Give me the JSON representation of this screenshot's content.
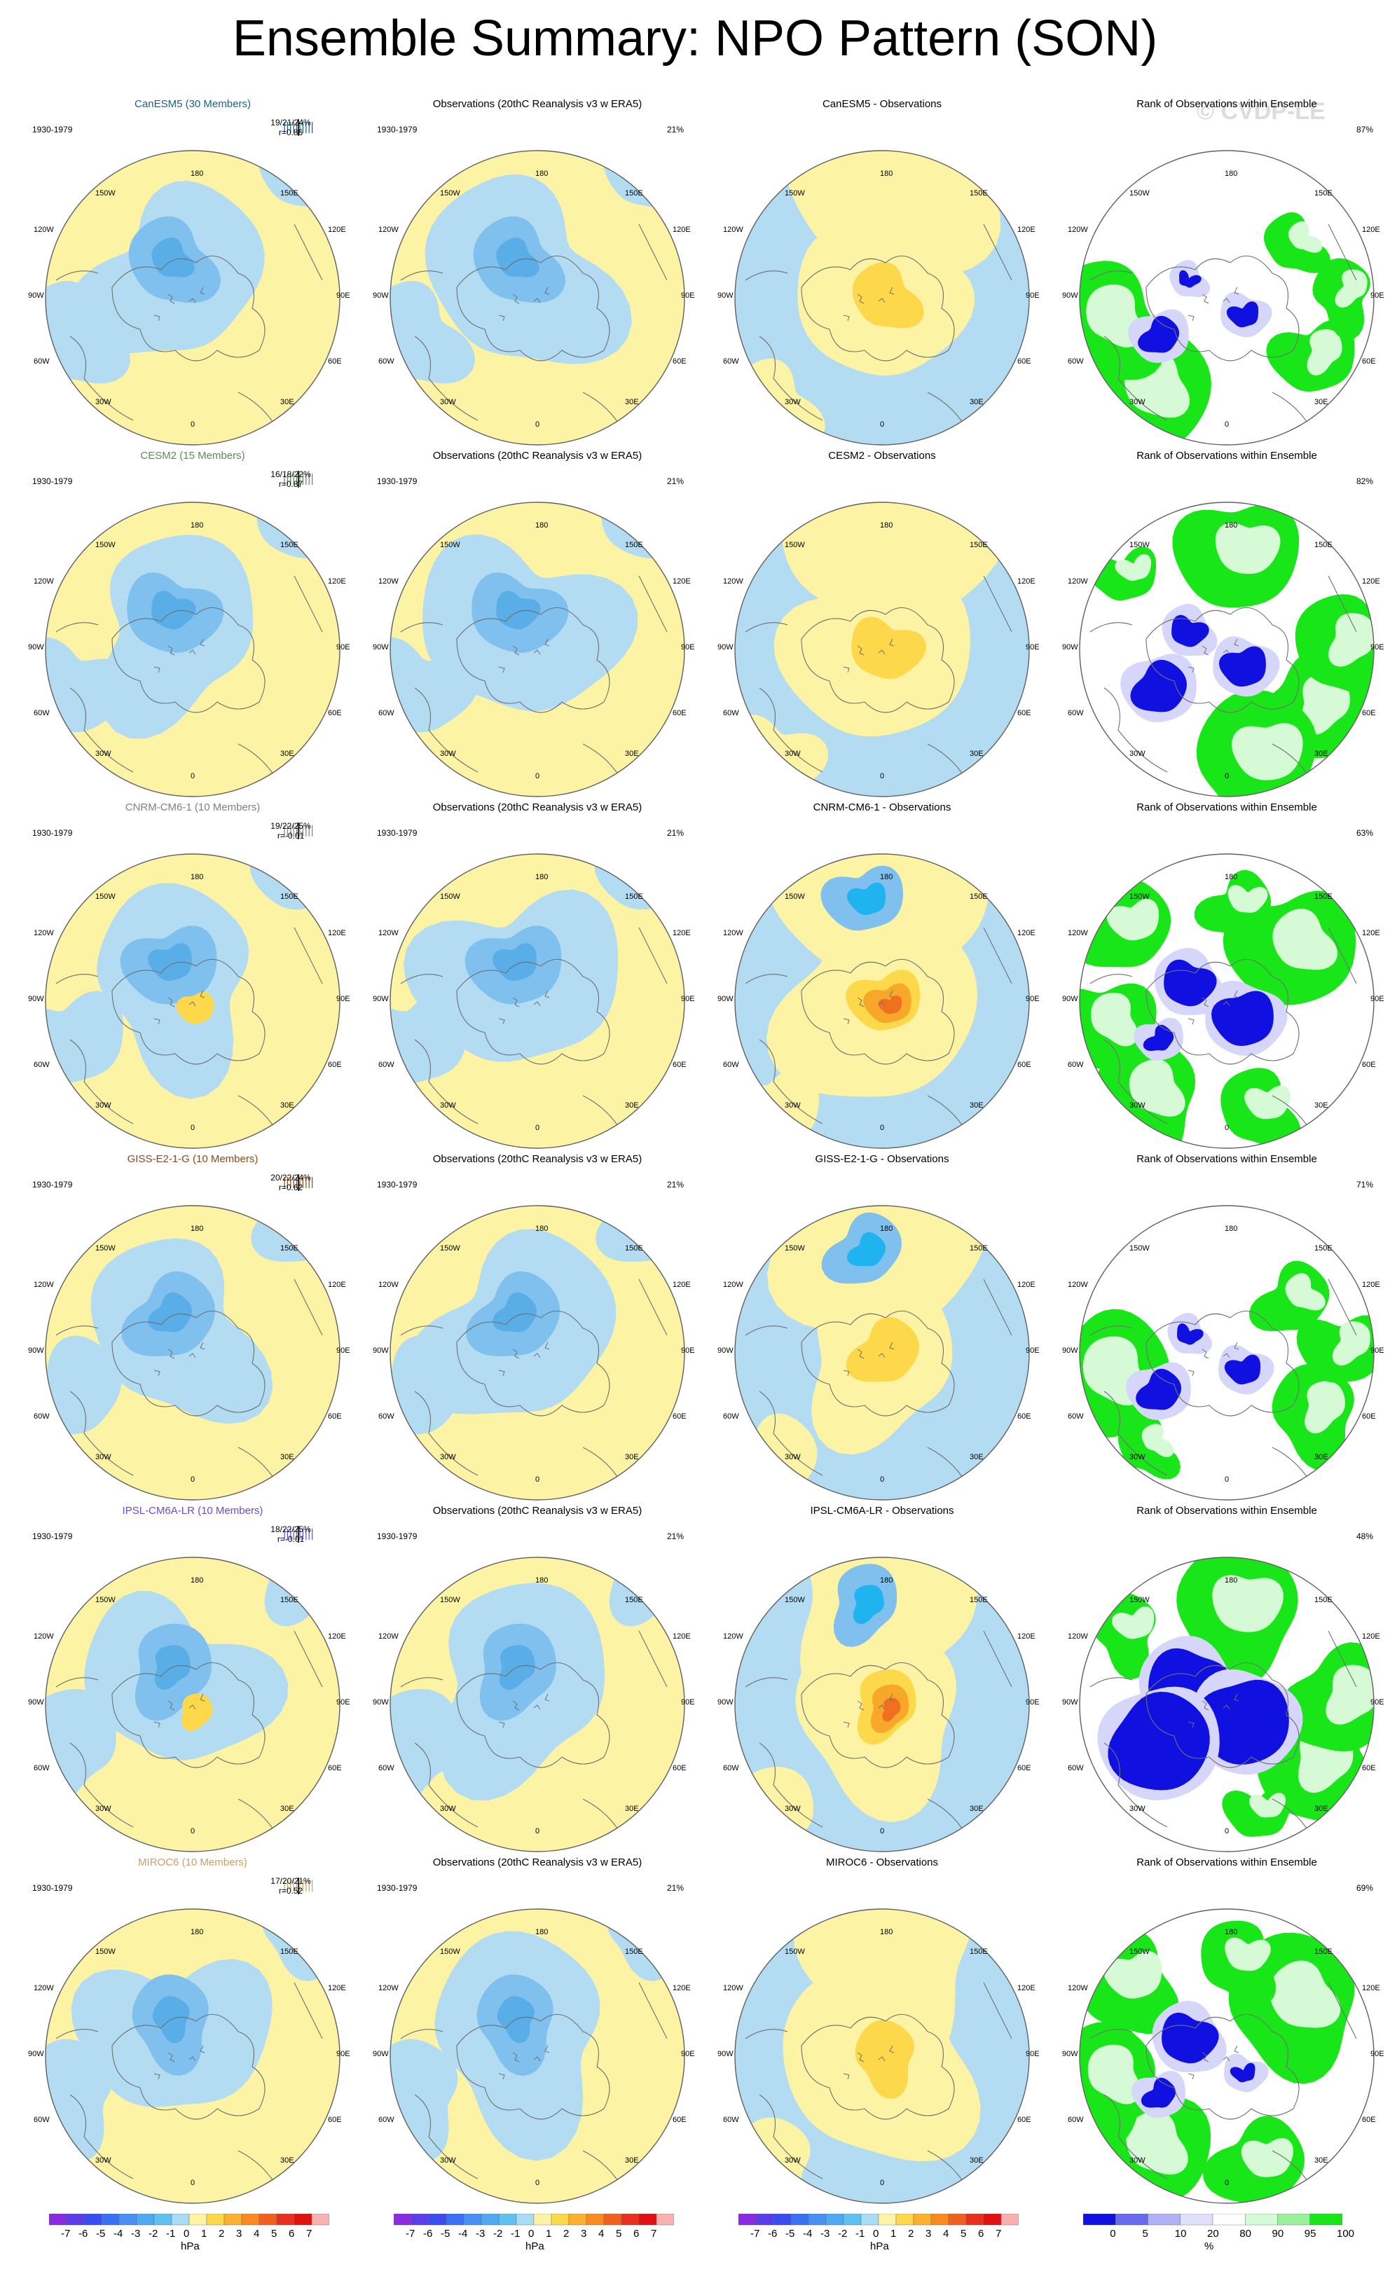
{
  "title": "Ensemble Summary: NPO Pattern (SON)",
  "watermark": "© CVDP-LE",
  "period": "1930-1979",
  "lon_labels": {
    "top": "180",
    "tl": "150W",
    "tr": "150E",
    "ul": "120W",
    "ur": "120E",
    "l": "90W",
    "r": "90E",
    "ll": "60W",
    "lr": "60E",
    "bl": "30W",
    "br": "30E",
    "bottom": "0"
  },
  "colors": {
    "light_blue": "#b3dcf2",
    "mid_blue": "#7fc0ee",
    "blue": "#5aaee8",
    "cyan": "#1fb4f0",
    "light_yellow": "#fcf3a4",
    "yellow_orange": "#fcd84a",
    "orange": "#f7a82a",
    "deep_orange": "#f07020",
    "rank_green": "#19e619",
    "rank_pale_green": "#d6fad6",
    "rank_blue": "#1010e0",
    "rank_lavender": "#d6d6fa"
  },
  "rows": [
    {
      "model": {
        "title": "CanESM5 (30 Members)",
        "title_color": "#1a5e8c",
        "stats": "19/21/24%",
        "r": "r=0.86",
        "tick_color": "#1a5e8c"
      },
      "obs": {
        "title": "Observations (20thC Reanalysis v3 w ERA5)",
        "pct": "21%"
      },
      "diff": {
        "title": "CanESM5 - Observations"
      },
      "rank": {
        "title": "Rank of Observations within Ensemble",
        "pct": "87%"
      }
    },
    {
      "model": {
        "title": "CESM2 (15 Members)",
        "title_color": "#5a8c5a",
        "stats": "16/18/22%",
        "r": "r=0.87",
        "tick_color": "#5a8c5a"
      },
      "obs": {
        "title": "Observations (20thC Reanalysis v3 w ERA5)",
        "pct": "21%"
      },
      "diff": {
        "title": "CESM2 - Observations"
      },
      "rank": {
        "title": "Rank of Observations within Ensemble",
        "pct": "82%"
      }
    },
    {
      "model": {
        "title": "CNRM-CM6-1 (10 Members)",
        "title_color": "#808080",
        "stats": "19/22/25%",
        "r": "r=-0.01",
        "tick_color": "#808080"
      },
      "obs": {
        "title": "Observations (20thC Reanalysis v3 w ERA5)",
        "pct": "21%"
      },
      "diff": {
        "title": "CNRM-CM6-1 - Observations"
      },
      "rank": {
        "title": "Rank of Observations within Ensemble",
        "pct": "63%"
      }
    },
    {
      "model": {
        "title": "GISS-E2-1-G (10 Members)",
        "title_color": "#8c4a1a",
        "stats": "20/22/24%",
        "r": "r=0.62",
        "tick_color": "#8c4a1a"
      },
      "obs": {
        "title": "Observations (20thC Reanalysis v3 w ERA5)",
        "pct": "21%"
      },
      "diff": {
        "title": "GISS-E2-1-G - Observations"
      },
      "rank": {
        "title": "Rank of Observations within Ensemble",
        "pct": "71%"
      }
    },
    {
      "model": {
        "title": "IPSL-CM6A-LR (10 Members)",
        "title_color": "#6a4ad0",
        "stats": "18/22/25%",
        "r": "r=-0.01",
        "tick_color": "#6a4ad0"
      },
      "obs": {
        "title": "Observations (20thC Reanalysis v3 w ERA5)",
        "pct": "21%"
      },
      "diff": {
        "title": "IPSL-CM6A-LR - Observations"
      },
      "rank": {
        "title": "Rank of Observations within Ensemble",
        "pct": "48%"
      }
    },
    {
      "model": {
        "title": "MIROC6 (10 Members)",
        "title_color": "#c8a068",
        "stats": "17/20/21%",
        "r": "r=0.52",
        "tick_color": "#c8a068"
      },
      "obs": {
        "title": "Observations (20thC Reanalysis v3 w ERA5)",
        "pct": "21%"
      },
      "diff": {
        "title": "MIROC6 - Observations"
      },
      "rank": {
        "title": "Rank of Observations within Ensemble",
        "pct": "69%"
      }
    }
  ],
  "colorbar_hpa": {
    "labels": [
      "-7",
      "-6",
      "-5",
      "-4",
      "-3",
      "-2",
      "-1",
      "0",
      "1",
      "2",
      "3",
      "4",
      "5",
      "6",
      "7"
    ],
    "colors": [
      "#8a2be2",
      "#5a3ce8",
      "#3a4cf0",
      "#3a70f4",
      "#4a90f4",
      "#50a8f0",
      "#60c0f0",
      "#a8dcf4",
      "#fcf3a4",
      "#fcd84a",
      "#fcb030",
      "#f88a20",
      "#f06020",
      "#e83020",
      "#e01010",
      "#f8b0b0"
    ],
    "unit": "hPa"
  },
  "colorbar_rank": {
    "labels": [
      "0",
      "5",
      "10",
      "20",
      "80",
      "90",
      "95",
      "100"
    ],
    "colors": [
      "#1010e0",
      "#6a6aec",
      "#b0b0f4",
      "#e0e0fa",
      "#ffffff",
      "#d6fad6",
      "#9af09a",
      "#19e619"
    ],
    "unit": "%"
  }
}
